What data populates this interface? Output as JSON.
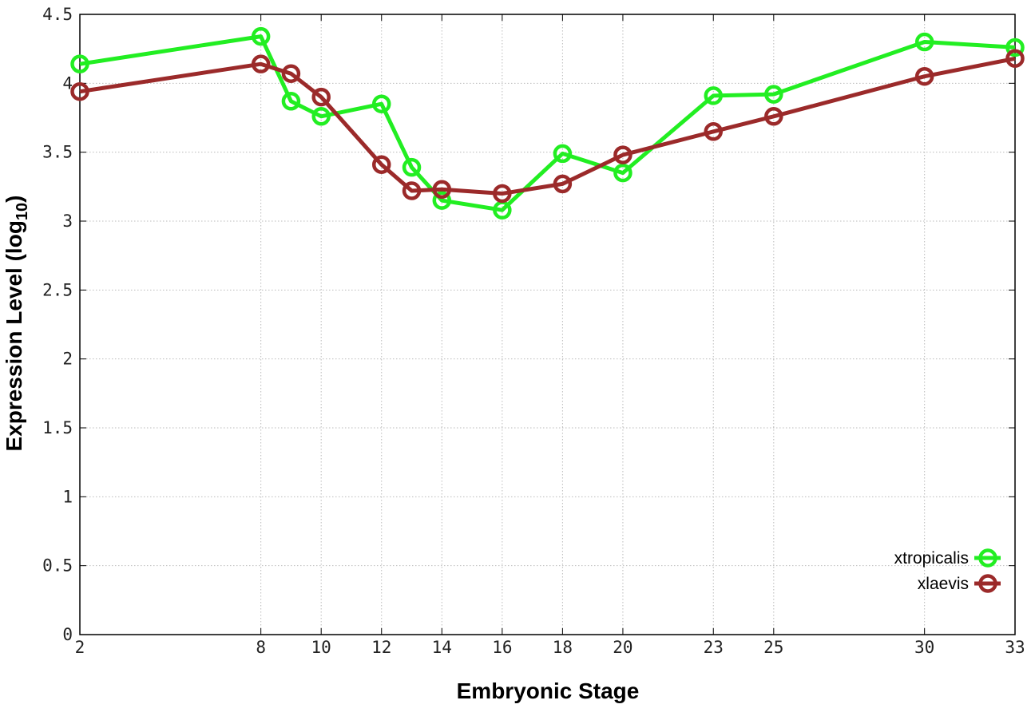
{
  "chart_data": {
    "type": "line",
    "xlabel": "Embryonic Stage",
    "ylabel_main": "Expression Level (log",
    "ylabel_sub": "10",
    "ylabel_close": ")",
    "xlim": [
      2,
      33
    ],
    "ylim": [
      0,
      4.5
    ],
    "x_ticks": [
      2,
      8,
      10,
      12,
      14,
      16,
      18,
      20,
      23,
      25,
      30,
      33
    ],
    "y_ticks": [
      0,
      0.5,
      1,
      1.5,
      2,
      2.5,
      3,
      3.5,
      4,
      4.5
    ],
    "y_tick_labels": [
      "0",
      "0.5",
      "1",
      "1.5",
      "2",
      "2.5",
      "3",
      "3.5",
      "4",
      "4.5"
    ],
    "grid": true,
    "legend_position": "bottom-right",
    "series": [
      {
        "name": "xtropicalis",
        "color": "#22ee22",
        "x": [
          2,
          8,
          9,
          10,
          12,
          13,
          14,
          16,
          18,
          20,
          23,
          25,
          30,
          33
        ],
        "y": [
          4.14,
          4.34,
          3.87,
          3.76,
          3.85,
          3.39,
          3.15,
          3.08,
          3.49,
          3.35,
          3.91,
          3.92,
          4.3,
          4.26
        ]
      },
      {
        "name": "xlaevis",
        "color": "#9b2a2a",
        "x": [
          2,
          8,
          9,
          10,
          12,
          13,
          14,
          16,
          18,
          20,
          23,
          25,
          30,
          33
        ],
        "y": [
          3.94,
          4.14,
          4.07,
          3.9,
          3.41,
          3.22,
          3.23,
          3.2,
          3.27,
          3.48,
          3.65,
          3.76,
          4.05,
          4.18
        ]
      }
    ]
  }
}
